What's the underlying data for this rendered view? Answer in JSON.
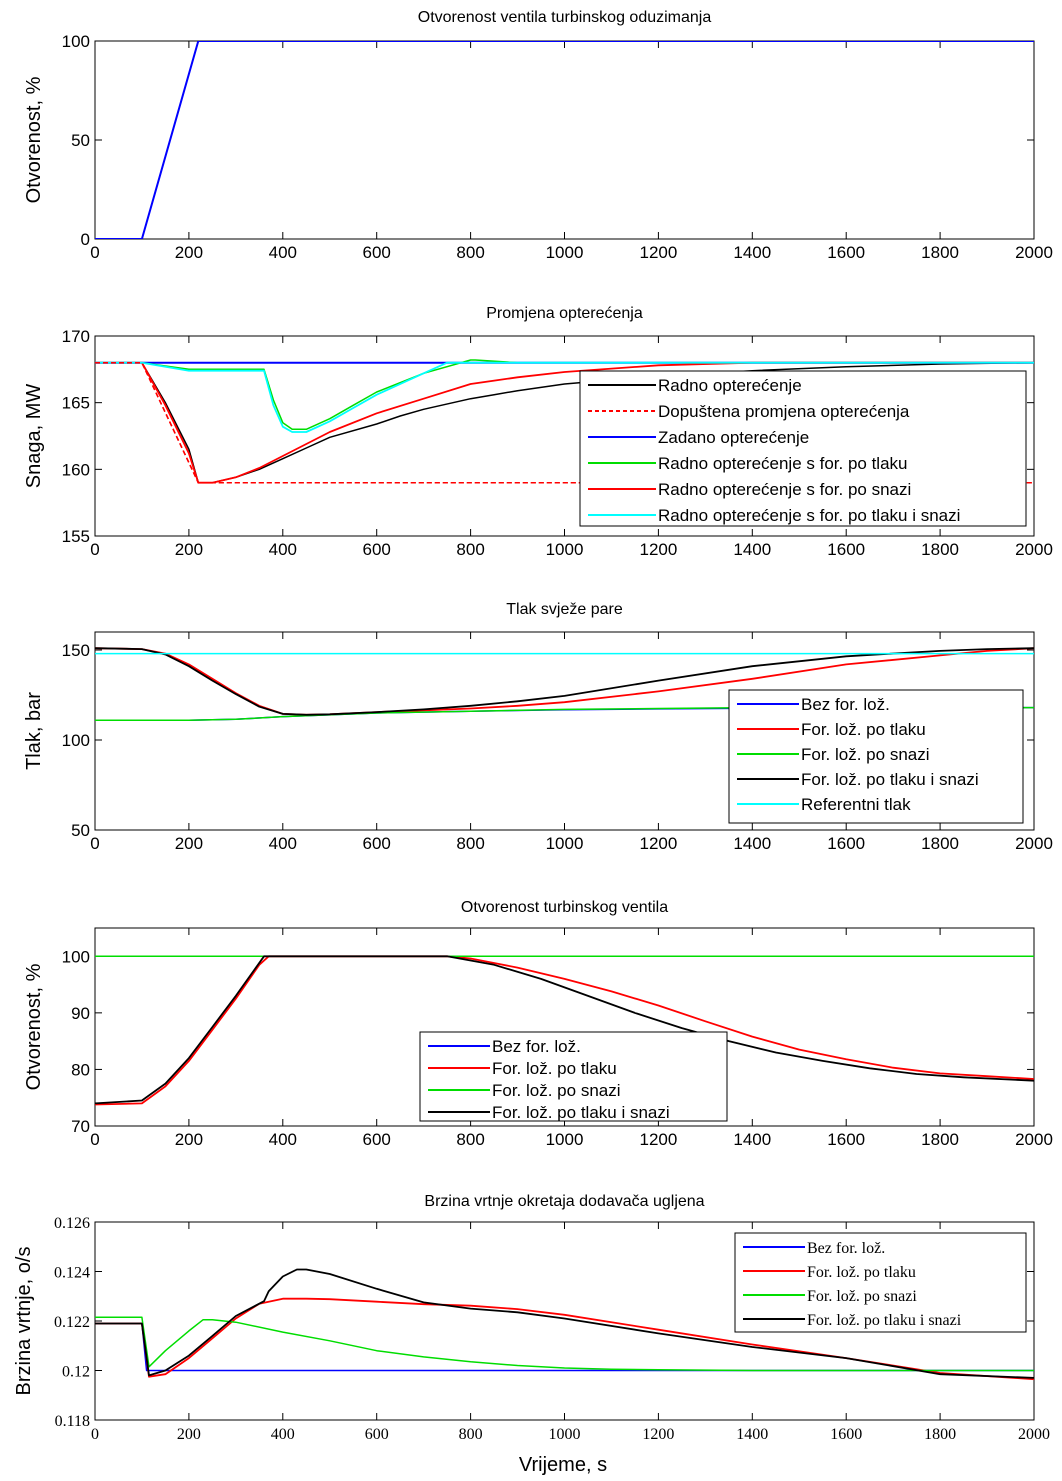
{
  "colors": {
    "black": "#000000",
    "red": "#ff0000",
    "blue": "#0000ff",
    "green": "#00dd00",
    "cyan": "#00ffff"
  },
  "xlabel": "Vrijeme, s",
  "chart_data": [
    {
      "type": "line",
      "title": "Otvorenost ventila turbinskog oduzimanja",
      "xlabel": "",
      "ylabel": "Otvorenost, %",
      "xlim": [
        0,
        2000
      ],
      "ylim": [
        0,
        100
      ],
      "xticks": [
        "0",
        "200",
        "400",
        "600",
        "800",
        "1000",
        "1200",
        "1400",
        "1600",
        "1800",
        "2000"
      ],
      "yticks": [
        {
          "v": 0,
          "t": "0"
        },
        {
          "v": 50,
          "t": "50"
        },
        {
          "v": 100,
          "t": "100"
        }
      ],
      "series": [
        {
          "color": "blue",
          "width": 2,
          "x": [
            0,
            100,
            220,
            2000
          ],
          "y": [
            0,
            0,
            100,
            100
          ]
        }
      ]
    },
    {
      "type": "line",
      "title": "Promjena opterećenja",
      "ylabel": "Snaga, MW",
      "xlim": [
        0,
        2000
      ],
      "ylim": [
        155,
        170
      ],
      "xticks": [
        "0",
        "200",
        "400",
        "600",
        "800",
        "1000",
        "1200",
        "1400",
        "1600",
        "1800",
        "2000"
      ],
      "yticks": [
        {
          "v": 155,
          "t": "155"
        },
        {
          "v": 160,
          "t": "160"
        },
        {
          "v": 165,
          "t": "165"
        },
        {
          "v": 170,
          "t": "170"
        }
      ],
      "legend_position": "right",
      "series": [
        {
          "name": "Radno opterećenje",
          "color": "black",
          "width": 1.5,
          "x": [
            0,
            100,
            150,
            200,
            220,
            250,
            300,
            350,
            400,
            450,
            500,
            600,
            650,
            700,
            800,
            850,
            900,
            1000,
            1200,
            1400,
            1600,
            1800,
            2000
          ],
          "y": [
            168,
            168,
            165,
            161.5,
            159,
            159,
            159.4,
            160,
            160.8,
            161.6,
            162.4,
            163.4,
            164,
            164.5,
            165.3,
            165.6,
            165.9,
            166.4,
            167,
            167.4,
            167.7,
            167.9,
            168
          ]
        },
        {
          "name": "Dopuštena promjena opterećenja",
          "color": "red",
          "width": 1.5,
          "dash": "5,3",
          "x": [
            0,
            100,
            220,
            2000
          ],
          "y": [
            168,
            168,
            159,
            159
          ]
        },
        {
          "name": "Zadano opterećenje",
          "color": "blue",
          "width": 2,
          "x": [
            0,
            2000
          ],
          "y": [
            168,
            168
          ]
        },
        {
          "name": "Radno opterećenje s for. po tlaku",
          "color": "green",
          "width": 1.5,
          "x": [
            0,
            100,
            200,
            360,
            380,
            400,
            420,
            450,
            500,
            550,
            600,
            700,
            800,
            810,
            900,
            2000
          ],
          "y": [
            168,
            168,
            167.5,
            167.5,
            165.2,
            163.5,
            163,
            163,
            163.8,
            164.8,
            165.8,
            167.2,
            168.2,
            168.2,
            168,
            168
          ]
        },
        {
          "name": "Radno opterećenje s for. po snazi",
          "color": "red",
          "width": 1.8,
          "x": [
            0,
            100,
            150,
            200,
            220,
            250,
            300,
            350,
            400,
            450,
            500,
            600,
            700,
            800,
            900,
            1000,
            1200,
            1400,
            1600,
            1800,
            2000
          ],
          "y": [
            168,
            168,
            164.8,
            161.2,
            159,
            159,
            159.4,
            160.1,
            161,
            161.9,
            162.8,
            164.2,
            165.3,
            166.4,
            166.9,
            167.3,
            167.8,
            168,
            168,
            168,
            168
          ]
        },
        {
          "name": "Radno opterećenje s for. po tlaku i snazi",
          "color": "cyan",
          "width": 1.8,
          "x": [
            0,
            100,
            200,
            360,
            380,
            400,
            420,
            450,
            500,
            550,
            600,
            700,
            750,
            800,
            2000
          ],
          "y": [
            168,
            168,
            167.4,
            167.4,
            164.8,
            163.2,
            162.8,
            162.8,
            163.6,
            164.6,
            165.6,
            167.2,
            168,
            168,
            168
          ]
        }
      ]
    },
    {
      "type": "line",
      "title": "Tlak svježe pare",
      "ylabel": "Tlak, bar",
      "xlim": [
        0,
        2000
      ],
      "ylim": [
        50,
        160
      ],
      "xticks": [
        "0",
        "200",
        "400",
        "600",
        "800",
        "1000",
        "1200",
        "1400",
        "1600",
        "1800",
        "2000"
      ],
      "yticks": [
        {
          "v": 50,
          "t": "50"
        },
        {
          "v": 100,
          "t": "100"
        },
        {
          "v": 150,
          "t": "150"
        }
      ],
      "legend_position": "right",
      "series": [
        {
          "name": "Bez for. lož.",
          "color": "blue",
          "width": 1.5,
          "x": [
            0,
            200,
            300,
            400,
            600,
            800,
            1000,
            1200,
            1400,
            1600,
            1800,
            2000
          ],
          "y": [
            111,
            111,
            111.5,
            113,
            115,
            116,
            116.8,
            117.3,
            117.6,
            117.8,
            118,
            118
          ]
        },
        {
          "name": "For. lož. po tlaku",
          "color": "red",
          "width": 1.8,
          "x": [
            0,
            100,
            150,
            200,
            250,
            300,
            350,
            400,
            450,
            500,
            600,
            700,
            800,
            900,
            1000,
            1200,
            1400,
            1600,
            1800,
            1900,
            2000
          ],
          "y": [
            151,
            150.5,
            148,
            142,
            134,
            126,
            119,
            114.5,
            114,
            114.3,
            115.5,
            116.5,
            117.5,
            119,
            121,
            127,
            134,
            142,
            147,
            149.5,
            151
          ]
        },
        {
          "name": "For. lož. po snazi",
          "color": "green",
          "width": 1.5,
          "x": [
            0,
            200,
            300,
            400,
            600,
            800,
            1000,
            1200,
            1400,
            1600,
            1800,
            2000
          ],
          "y": [
            111,
            111,
            111.5,
            113,
            115,
            116,
            117,
            117.5,
            118,
            118,
            118,
            118
          ]
        },
        {
          "name": "For. lož. po tlaku i snazi",
          "color": "black",
          "width": 1.8,
          "x": [
            0,
            100,
            150,
            200,
            250,
            300,
            350,
            400,
            450,
            500,
            600,
            700,
            800,
            900,
            1000,
            1200,
            1400,
            1600,
            1800,
            1900,
            2000
          ],
          "y": [
            151,
            150.5,
            147.5,
            141,
            133,
            125.5,
            118.5,
            114.5,
            114,
            114.3,
            115.5,
            117,
            119,
            121.5,
            124.5,
            133,
            141,
            146.5,
            149.5,
            150.5,
            151
          ]
        },
        {
          "name": "Referentni tlak",
          "color": "cyan",
          "width": 1.5,
          "x": [
            0,
            2000
          ],
          "y": [
            148,
            148
          ]
        }
      ]
    },
    {
      "type": "line",
      "title": "Otvorenost turbinskog ventila",
      "ylabel": "Otvorenost, %",
      "xlim": [
        0,
        2000
      ],
      "ylim": [
        70,
        105
      ],
      "xticks": [
        "0",
        "200",
        "400",
        "600",
        "800",
        "1000",
        "1200",
        "1400",
        "1600",
        "1800",
        "2000"
      ],
      "yticks": [
        {
          "v": 70,
          "t": "70"
        },
        {
          "v": 80,
          "t": "80"
        },
        {
          "v": 90,
          "t": "90"
        },
        {
          "v": 100,
          "t": "100"
        }
      ],
      "legend_position": "center",
      "series": [
        {
          "name": "Bez for. lož.",
          "color": "blue",
          "width": 1.5,
          "x": [
            0,
            2000
          ],
          "y": [
            100,
            100
          ]
        },
        {
          "name": "For. lož. po tlaku",
          "color": "red",
          "width": 1.8,
          "x": [
            0,
            100,
            150,
            200,
            250,
            300,
            350,
            370,
            750,
            800,
            900,
            1000,
            1100,
            1200,
            1300,
            1400,
            1500,
            1600,
            1700,
            1800,
            1900,
            2000
          ],
          "y": [
            73.8,
            74,
            77,
            81.5,
            87,
            92.5,
            98.5,
            100,
            100,
            99.6,
            98,
            96,
            93.8,
            91.3,
            88.5,
            85.8,
            83.5,
            81.8,
            80.3,
            79.3,
            78.8,
            78.3
          ]
        },
        {
          "name": "For. lož. po snazi",
          "color": "green",
          "width": 1.5,
          "x": [
            0,
            2000
          ],
          "y": [
            100,
            100
          ]
        },
        {
          "name": "For. lož. po tlaku i snazi",
          "color": "black",
          "width": 1.8,
          "x": [
            0,
            100,
            150,
            200,
            250,
            300,
            360,
            370,
            750,
            850,
            950,
            1050,
            1150,
            1250,
            1350,
            1450,
            1550,
            1650,
            1750,
            1850,
            2000
          ],
          "y": [
            74,
            74.5,
            77.5,
            82,
            87.5,
            93,
            100,
            100,
            100,
            98.5,
            96,
            93,
            90,
            87.3,
            85,
            83,
            81.5,
            80.2,
            79.2,
            78.6,
            78
          ]
        }
      ]
    },
    {
      "type": "line",
      "title": "Brzina vrtnje okretaja dodavača ugljena",
      "ylabel": "Brzina vrtnje, o/s",
      "xlabel": "Vrijeme, s",
      "xlim": [
        0,
        2000
      ],
      "ylim": [
        0.118,
        0.126
      ],
      "xticks": [
        "0",
        "200",
        "400",
        "600",
        "800",
        "1000",
        "1200",
        "1400",
        "1600",
        "1800",
        "2000"
      ],
      "yticks": [
        {
          "v": 0.118,
          "t": "0.118"
        },
        {
          "v": 0.12,
          "t": "0.12"
        },
        {
          "v": 0.122,
          "t": "0.122"
        },
        {
          "v": 0.124,
          "t": "0.124"
        },
        {
          "v": 0.126,
          "t": "0.126"
        }
      ],
      "legend_position": "top-right",
      "series": [
        {
          "name": "Bez for. lož.",
          "color": "blue",
          "width": 1.5,
          "x": [
            0,
            100,
            110,
            2000
          ],
          "y": [
            0.1219,
            0.1219,
            0.12,
            0.12
          ]
        },
        {
          "name": "For. lož. po tlaku",
          "color": "red",
          "width": 1.8,
          "x": [
            0,
            100,
            115,
            150,
            200,
            250,
            300,
            350,
            400,
            450,
            500,
            600,
            700,
            800,
            900,
            1000,
            1200,
            1400,
            1600,
            1800,
            2000
          ],
          "y": [
            0.1219,
            0.1219,
            0.11975,
            0.11985,
            0.1205,
            0.1213,
            0.1221,
            0.1227,
            0.1229,
            0.1229,
            0.12288,
            0.12278,
            0.12268,
            0.12262,
            0.12248,
            0.12225,
            0.12165,
            0.12105,
            0.1205,
            0.1199,
            0.11965
          ]
        },
        {
          "name": "For. lož. po snazi",
          "color": "green",
          "width": 1.5,
          "x": [
            0,
            100,
            115,
            150,
            200,
            230,
            250,
            300,
            400,
            500,
            600,
            700,
            800,
            900,
            1000,
            1100,
            1200,
            1400,
            1600,
            1800,
            2000
          ],
          "y": [
            0.12215,
            0.12215,
            0.12015,
            0.1208,
            0.1216,
            0.12205,
            0.12205,
            0.12195,
            0.12155,
            0.1212,
            0.1208,
            0.12055,
            0.12035,
            0.1202,
            0.1201,
            0.12005,
            0.12003,
            0.12,
            0.12,
            0.12,
            0.12
          ]
        },
        {
          "name": "For. lož. po tlaku i snazi",
          "color": "black",
          "width": 1.8,
          "x": [
            0,
            100,
            115,
            150,
            200,
            250,
            300,
            360,
            370,
            400,
            430,
            450,
            500,
            600,
            700,
            800,
            900,
            1000,
            1200,
            1400,
            1600,
            1800,
            2000
          ],
          "y": [
            0.1219,
            0.1219,
            0.1198,
            0.12,
            0.1206,
            0.1214,
            0.1222,
            0.1228,
            0.1232,
            0.1238,
            0.12408,
            0.12408,
            0.1239,
            0.1233,
            0.12275,
            0.1225,
            0.12235,
            0.1221,
            0.1215,
            0.12095,
            0.1205,
            0.11985,
            0.1197
          ]
        }
      ]
    }
  ]
}
